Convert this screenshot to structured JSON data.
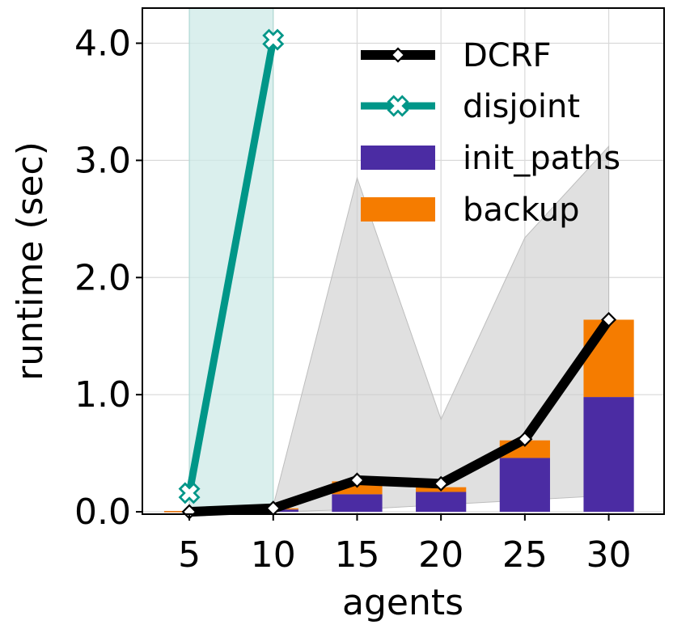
{
  "chart_data": {
    "type": "bar",
    "xlabel": "agents",
    "ylabel": "runtime (sec)",
    "x": [
      5,
      10,
      15,
      20,
      25,
      30
    ],
    "xticks": [
      "5",
      "10",
      "15",
      "20",
      "25",
      "30"
    ],
    "yticks": [
      "0.0",
      "1.0",
      "2.0",
      "3.0",
      "4.0"
    ],
    "xlim": [
      2.2,
      33.3
    ],
    "ylim": [
      -0.02,
      4.3
    ],
    "grid": true,
    "legend_position": "top-right",
    "bars": [
      {
        "name": "init_paths",
        "color": "#4b2ca3",
        "values": [
          0.0,
          0.02,
          0.15,
          0.17,
          0.46,
          0.98
        ]
      },
      {
        "name": "backup",
        "color": "#f57c00",
        "values": [
          0.0,
          0.01,
          0.11,
          0.04,
          0.15,
          0.66
        ]
      }
    ],
    "lines": [
      {
        "name": "DCRF",
        "color": "#000000",
        "marker": "diamond",
        "x": [
          5,
          10,
          15,
          20,
          25,
          30
        ],
        "values": [
          0.0,
          0.03,
          0.27,
          0.24,
          0.62,
          1.64
        ]
      },
      {
        "name": "disjoint",
        "color": "#009688",
        "marker": "x",
        "x": [
          5,
          10
        ],
        "values": [
          0.16,
          4.03
        ]
      }
    ],
    "bands": [
      {
        "series": "DCRF",
        "color": "#cccccc",
        "x": [
          5,
          10,
          15,
          20,
          25,
          30
        ],
        "low": [
          0.0,
          0.0,
          0.02,
          0.06,
          0.1,
          0.14
        ],
        "high": [
          0.0,
          0.05,
          2.85,
          0.79,
          2.34,
          3.12
        ]
      },
      {
        "series": "disjoint",
        "color": "#cdeae7",
        "x": [
          5,
          10
        ],
        "low": [
          0.0,
          0.0
        ],
        "high": [
          4.3,
          4.3
        ]
      }
    ]
  }
}
